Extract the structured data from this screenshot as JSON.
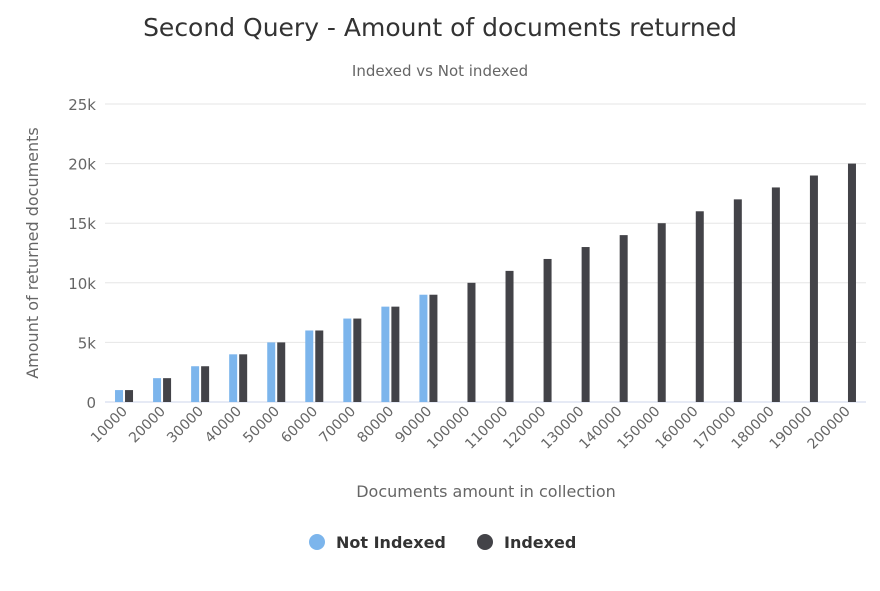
{
  "chart_data": {
    "type": "bar",
    "title": "Second Query - Amount of documents returned",
    "subtitle": "Indexed vs Not indexed",
    "xlabel": "Documents amount in collection",
    "ylabel": "Amount of returned documents",
    "categories": [
      "10000",
      "20000",
      "30000",
      "40000",
      "50000",
      "60000",
      "70000",
      "80000",
      "90000",
      "100000",
      "110000",
      "120000",
      "130000",
      "140000",
      "150000",
      "160000",
      "170000",
      "180000",
      "190000",
      "200000"
    ],
    "series": [
      {
        "name": "Not Indexed",
        "color": "#7cb5ec",
        "values": [
          1000,
          2000,
          3000,
          4000,
          5000,
          6000,
          7000,
          8000,
          9000,
          null,
          null,
          null,
          null,
          null,
          null,
          null,
          null,
          null,
          null,
          null
        ]
      },
      {
        "name": "Indexed",
        "color": "#434348",
        "values": [
          1000,
          2000,
          3000,
          4000,
          5000,
          6000,
          7000,
          8000,
          9000,
          10000,
          11000,
          12000,
          13000,
          14000,
          15000,
          16000,
          17000,
          18000,
          19000,
          20000
        ]
      }
    ],
    "ylim": [
      0,
      25000
    ],
    "yticks": [
      0,
      5000,
      10000,
      15000,
      20000,
      25000
    ],
    "ytick_labels": [
      "0",
      "5k",
      "10k",
      "15k",
      "20k",
      "25k"
    ],
    "grid": true,
    "legend_position": "bottom-center"
  }
}
